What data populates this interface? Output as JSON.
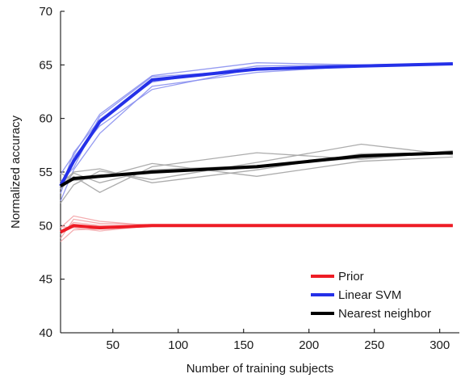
{
  "chart_data": {
    "type": "line",
    "xlabel": "Number of training subjects",
    "ylabel": "Normalized accuracy",
    "xlim": [
      10,
      315
    ],
    "ylim": [
      40,
      70
    ],
    "xticks": [
      50,
      100,
      150,
      200,
      250,
      300
    ],
    "yticks": [
      40,
      45,
      50,
      55,
      60,
      65,
      70
    ],
    "legend_position": "bottom-right",
    "series": [
      {
        "name": "Prior",
        "color": "#ee1c25",
        "x": [
          10,
          20,
          40,
          80,
          160,
          240,
          310
        ],
        "values": [
          49.4,
          50.0,
          49.8,
          50.0,
          50.0,
          50.0,
          50.0
        ],
        "runs": [
          [
            48.8,
            50.6,
            50.2,
            50.1,
            50.0,
            50.0,
            50.0
          ],
          [
            49.8,
            50.9,
            50.4,
            50.0,
            50.0,
            50.0,
            50.0
          ],
          [
            48.5,
            49.6,
            49.7,
            50.0,
            50.0,
            50.0,
            50.0
          ],
          [
            49.9,
            49.8,
            49.5,
            50.0,
            50.0,
            50.0,
            50.0
          ],
          [
            49.2,
            50.3,
            50.0,
            50.0,
            50.0,
            50.0,
            50.0
          ]
        ]
      },
      {
        "name": "Linear SVM",
        "color": "#2430e8",
        "x": [
          10,
          20,
          40,
          80,
          160,
          240,
          310
        ],
        "values": [
          53.7,
          56.0,
          59.7,
          63.6,
          64.6,
          64.9,
          65.1
        ],
        "runs": [
          [
            52.3,
            55.2,
            58.6,
            63.0,
            64.3,
            64.9,
            65.1
          ],
          [
            54.8,
            56.6,
            60.4,
            64.0,
            65.2,
            65.0,
            65.1
          ],
          [
            53.0,
            56.4,
            59.3,
            62.7,
            64.7,
            64.9,
            65.1
          ],
          [
            54.1,
            55.4,
            60.2,
            63.9,
            64.5,
            64.9,
            65.1
          ],
          [
            53.4,
            56.8,
            59.9,
            63.4,
            64.9,
            65.0,
            65.1
          ]
        ]
      },
      {
        "name": "Nearest neighbor",
        "color": "#000000",
        "x": [
          10,
          20,
          40,
          80,
          160,
          240,
          310
        ],
        "values": [
          53.7,
          54.4,
          54.6,
          55.0,
          55.5,
          56.5,
          56.8
        ],
        "runs": [
          [
            53.4,
            54.6,
            53.1,
            55.5,
            56.8,
            56.2,
            56.9
          ],
          [
            52.1,
            53.8,
            55.1,
            54.3,
            55.9,
            57.6,
            56.6
          ],
          [
            54.9,
            54.2,
            54.5,
            55.8,
            54.6,
            56.0,
            56.4
          ],
          [
            53.9,
            55.0,
            55.3,
            54.0,
            55.2,
            56.7,
            56.8
          ],
          [
            53.6,
            54.9,
            54.0,
            55.2,
            55.6,
            56.3,
            57.0
          ]
        ]
      }
    ]
  }
}
